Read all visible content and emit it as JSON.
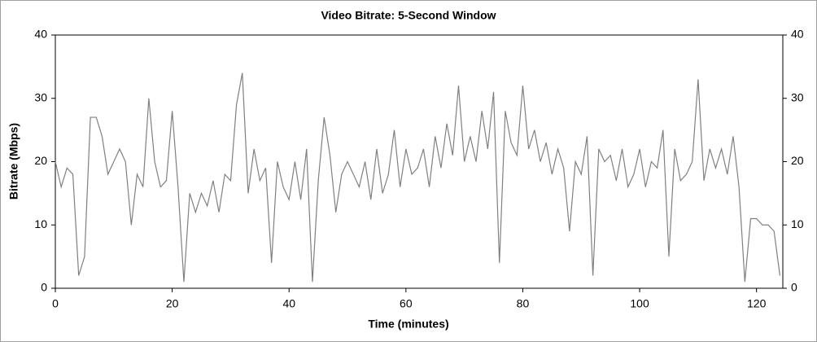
{
  "chart_data": {
    "type": "line",
    "title": "Video Bitrate: 5-Second Window",
    "x_label": "Time (minutes)",
    "y_label": "Bitrate (Mbps)",
    "x": [
      0,
      1,
      2,
      3,
      4,
      5,
      6,
      7,
      8,
      9,
      10,
      11,
      12,
      13,
      14,
      15,
      16,
      17,
      18,
      19,
      20,
      21,
      22,
      23,
      24,
      25,
      26,
      27,
      28,
      29,
      30,
      31,
      32,
      33,
      34,
      35,
      36,
      37,
      38,
      39,
      40,
      41,
      42,
      43,
      44,
      45,
      46,
      47,
      48,
      49,
      50,
      51,
      52,
      53,
      54,
      55,
      56,
      57,
      58,
      59,
      60,
      61,
      62,
      63,
      64,
      65,
      66,
      67,
      68,
      69,
      70,
      71,
      72,
      73,
      74,
      75,
      76,
      77,
      78,
      79,
      80,
      81,
      82,
      83,
      84,
      85,
      86,
      87,
      88,
      89,
      90,
      91,
      92,
      93,
      94,
      95,
      96,
      97,
      98,
      99,
      100,
      101,
      102,
      103,
      104,
      105,
      106,
      107,
      108,
      109,
      110,
      111,
      112,
      113,
      114,
      115,
      116,
      117,
      118,
      119,
      120,
      121,
      122,
      123,
      124
    ],
    "series": [
      {
        "name": "Bitrate",
        "color": "#808080",
        "values": [
          20,
          16,
          19,
          18,
          2,
          5,
          27,
          27,
          24,
          18,
          20,
          22,
          20,
          10,
          18,
          16,
          30,
          20,
          16,
          17,
          28,
          16,
          1,
          15,
          12,
          15,
          13,
          17,
          12,
          18,
          17,
          29,
          34,
          15,
          22,
          17,
          19,
          4,
          20,
          16,
          14,
          20,
          14,
          22,
          1,
          17,
          27,
          21,
          12,
          18,
          20,
          18,
          16,
          20,
          14,
          22,
          15,
          18,
          25,
          16,
          22,
          18,
          19,
          22,
          16,
          24,
          19,
          26,
          21,
          32,
          20,
          24,
          20,
          28,
          22,
          31,
          4,
          28,
          23,
          21,
          32,
          22,
          25,
          20,
          23,
          18,
          22,
          19,
          9,
          20,
          18,
          24,
          2,
          22,
          20,
          21,
          17,
          22,
          16,
          18,
          22,
          16,
          20,
          19,
          25,
          5,
          22,
          17,
          18,
          20,
          33,
          17,
          22,
          19,
          22,
          18,
          24,
          16,
          1,
          11,
          11,
          10,
          10,
          9,
          2
        ]
      }
    ],
    "xlim": [
      0,
      124.5
    ],
    "ylim": [
      0,
      40
    ],
    "xticks": [
      0,
      20,
      40,
      60,
      80,
      100,
      120
    ],
    "yticks": [
      0,
      10,
      20,
      30,
      40
    ]
  }
}
